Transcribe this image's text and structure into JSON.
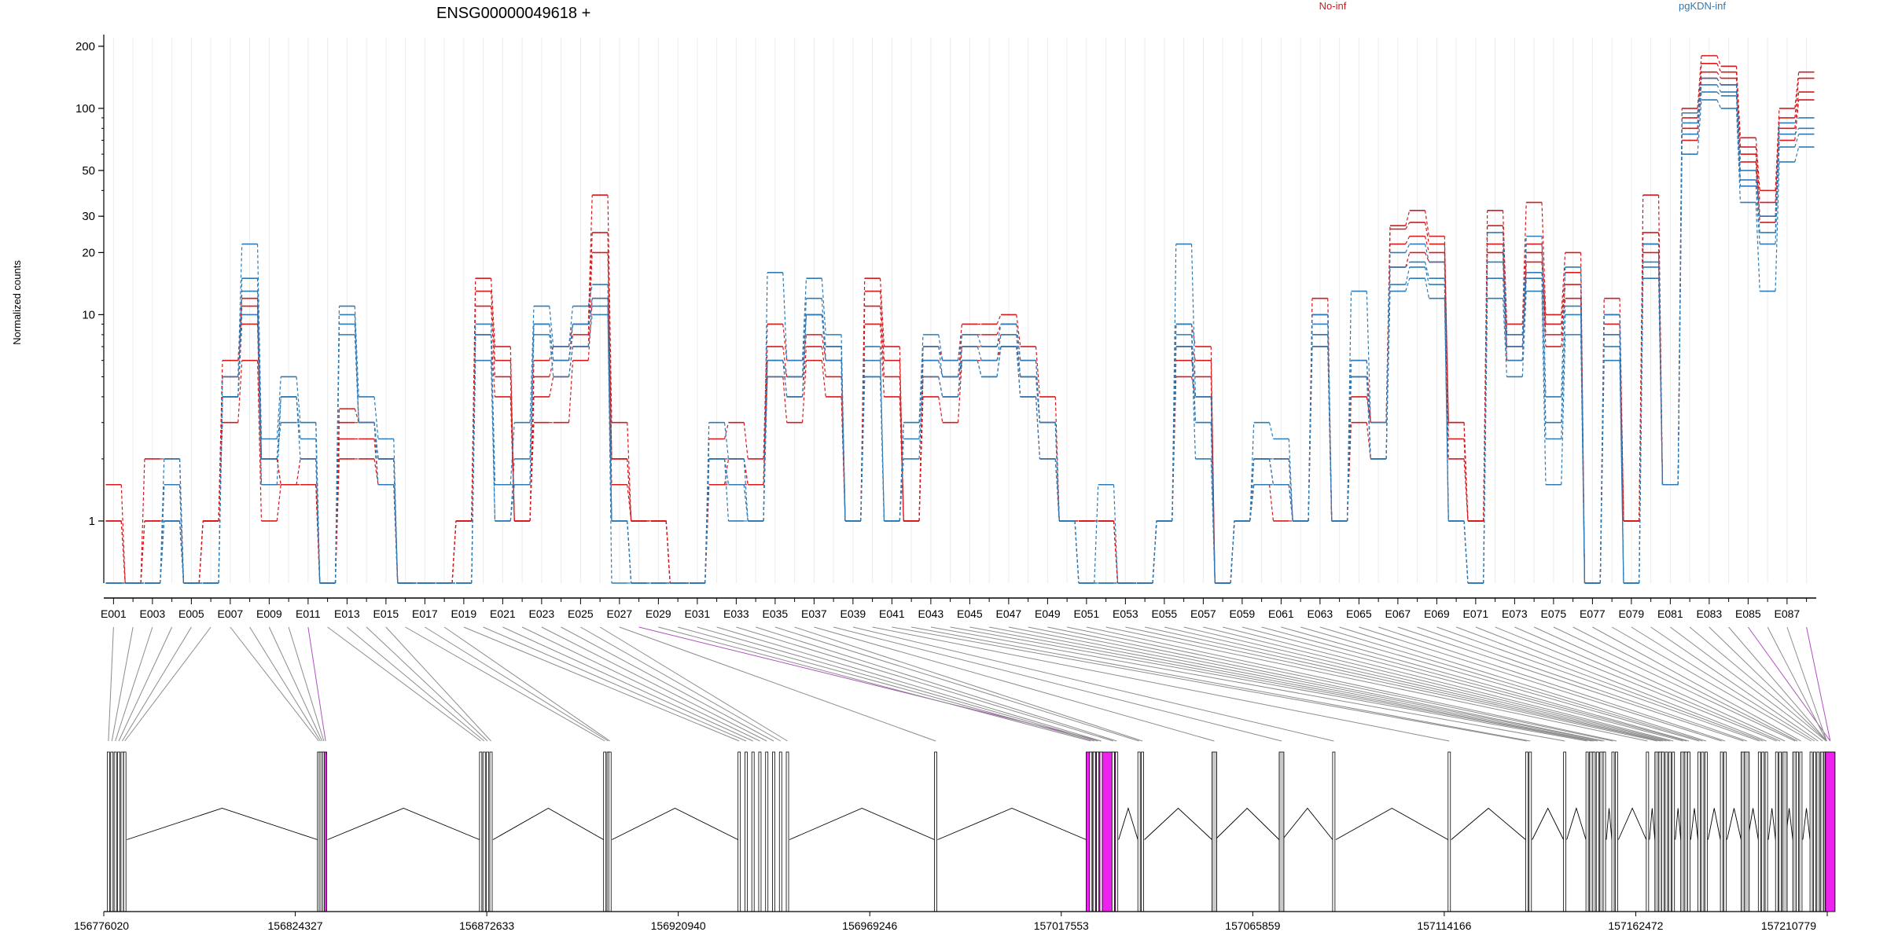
{
  "chart_data": {
    "type": "line",
    "title": "ENSG00000049618 +",
    "xlabel": "",
    "ylabel": "Normalized counts",
    "y_scale": "log",
    "ylim": [
      0.5,
      220
    ],
    "y_ticks": [
      1,
      10,
      20,
      30,
      50,
      100,
      200
    ],
    "grid": true,
    "legend_position": "top",
    "colors": {
      "No-inf": "#d7191c",
      "pgKDN-inf": "#2c7bb6",
      "highlight_exon": "#ee22ee",
      "exon_fill": "#c8c8c8"
    },
    "tick_labels": [
      "E001",
      "E003",
      "E005",
      "E007",
      "E009",
      "E011",
      "E013",
      "E015",
      "E017",
      "E019",
      "E021",
      "E023",
      "E025",
      "E027",
      "E029",
      "E031",
      "E033",
      "E035",
      "E037",
      "E039",
      "E041",
      "E043",
      "E045",
      "E047",
      "E049",
      "E051",
      "E053",
      "E055",
      "E057",
      "E059",
      "E061",
      "E063",
      "E065",
      "E067",
      "E069",
      "E071",
      "E073",
      "E075",
      "E077",
      "E079",
      "E081",
      "E083",
      "E085",
      "E087"
    ],
    "exons": [
      "E001",
      "E002",
      "E003",
      "E004",
      "E005",
      "E006",
      "E007",
      "E008",
      "E009",
      "E010",
      "E011",
      "E012",
      "E013",
      "E014",
      "E015",
      "E016",
      "E017",
      "E018",
      "E019",
      "E020",
      "E021",
      "E022",
      "E023",
      "E024",
      "E025",
      "E026",
      "E027",
      "E028",
      "E029",
      "E030",
      "E031",
      "E032",
      "E033",
      "E034",
      "E035",
      "E036",
      "E037",
      "E038",
      "E039",
      "E040",
      "E041",
      "E042",
      "E043",
      "E044",
      "E045",
      "E046",
      "E047",
      "E048",
      "E049",
      "E050",
      "E051",
      "E052",
      "E053",
      "E054",
      "E055",
      "E056",
      "E057",
      "E058",
      "E059",
      "E060",
      "E061",
      "E062",
      "E063",
      "E064",
      "E065",
      "E066",
      "E067",
      "E068",
      "E069",
      "E070",
      "E071",
      "E072",
      "E073",
      "E074",
      "E075",
      "E076",
      "E077",
      "E078",
      "E079",
      "E080",
      "E081",
      "E082",
      "E083",
      "E084",
      "E085",
      "E086",
      "E087",
      "E088"
    ],
    "series": [
      {
        "name": "No-inf",
        "group": "No-inf",
        "values": [
          1,
          0.5,
          1,
          1,
          0.5,
          1,
          5,
          11,
          2,
          1.5,
          1.5,
          0.5,
          3,
          3,
          2,
          0.5,
          0.5,
          0.5,
          1,
          13,
          6,
          1,
          5,
          6,
          8,
          25,
          2,
          1,
          1,
          0.5,
          0.5,
          2,
          2,
          1.5,
          7,
          5,
          8,
          6,
          1,
          13,
          6,
          1,
          6,
          5,
          8,
          8,
          9,
          6,
          3,
          1,
          1,
          1,
          0.5,
          0.5,
          1,
          7,
          6,
          0.5,
          1,
          2,
          1.5,
          1,
          10,
          1,
          5,
          3,
          26,
          28,
          22,
          3,
          1,
          27,
          8,
          22,
          9,
          16,
          0.5,
          10,
          1,
          25,
          1.5,
          90,
          165,
          150,
          65,
          35,
          90,
          140
        ]
      },
      {
        "name": "",
        "group": "No-inf",
        "values": [
          1.5,
          0.5,
          2,
          2,
          0.5,
          1,
          6,
          12,
          2,
          1.5,
          2,
          0.5,
          3.5,
          3,
          2,
          0.5,
          0.5,
          0.5,
          1,
          15,
          7,
          1,
          6,
          7,
          9,
          38,
          3,
          1,
          1,
          0.5,
          0.5,
          2.5,
          3,
          2,
          9,
          6,
          10,
          7,
          1,
          15,
          7,
          1,
          7,
          6,
          9,
          9,
          10,
          7,
          4,
          1,
          1,
          1,
          0.5,
          0.5,
          1,
          9,
          7,
          0.5,
          1,
          2,
          2,
          1,
          12,
          1,
          6,
          3,
          27,
          32,
          24,
          3,
          1,
          32,
          9,
          35,
          10,
          20,
          0.5,
          12,
          1,
          38,
          1.5,
          100,
          180,
          160,
          72,
          40,
          100,
          150
        ]
      },
      {
        "name": "",
        "group": "No-inf",
        "values": [
          1,
          0.5,
          1,
          1,
          0.5,
          1,
          4,
          9,
          1.5,
          1.5,
          1.5,
          0.5,
          2.5,
          2.5,
          1.5,
          0.5,
          0.5,
          0.5,
          1,
          11,
          5,
          1,
          4,
          5,
          7,
          20,
          2,
          1,
          1,
          0.5,
          0.5,
          1.5,
          2,
          1.5,
          6,
          4,
          7,
          5,
          1,
          11,
          5,
          1,
          5,
          4,
          7,
          7,
          8,
          5,
          3,
          1,
          1,
          1,
          0.5,
          0.5,
          1,
          6,
          5,
          0.5,
          1,
          1.5,
          1.5,
          1,
          8,
          1,
          4,
          3,
          22,
          24,
          20,
          2.5,
          1,
          22,
          7,
          20,
          8,
          14,
          0.5,
          9,
          1,
          22,
          1.5,
          80,
          150,
          140,
          60,
          30,
          80,
          120
        ]
      },
      {
        "name": "",
        "group": "No-inf",
        "values": [
          0.5,
          0.5,
          0.5,
          1.5,
          0.5,
          1,
          3,
          6,
          1,
          1.5,
          1.5,
          0.5,
          2,
          2,
          1.5,
          0.5,
          0.5,
          0.5,
          1,
          8,
          4,
          1,
          3,
          3,
          6,
          12,
          1.5,
          1,
          1,
          0.5,
          0.5,
          1.5,
          1.5,
          1.5,
          5,
          3,
          6,
          4,
          1,
          9,
          4,
          1,
          4,
          3,
          6,
          6,
          7,
          4,
          2,
          1,
          1,
          1,
          0.5,
          0.5,
          1,
          5,
          4,
          0.5,
          1,
          1.5,
          1,
          1,
          7,
          1,
          3,
          2,
          17,
          20,
          18,
          2,
          1,
          20,
          6,
          18,
          7,
          12,
          0.5,
          8,
          1,
          20,
          1.5,
          70,
          140,
          130,
          55,
          28,
          70,
          110
        ]
      },
      {
        "name": "pgKDN-inf",
        "group": "pgKDN-inf",
        "values": [
          0.5,
          0.5,
          0.5,
          2,
          0.5,
          0.5,
          4,
          15,
          2,
          4,
          2.5,
          0.5,
          10,
          3,
          2,
          0.5,
          0.5,
          0.5,
          0.5,
          8,
          1,
          2,
          9,
          6,
          9,
          12,
          1,
          0.5,
          0.5,
          0.5,
          0.5,
          2,
          1.5,
          1,
          6,
          5,
          10,
          7,
          1,
          6,
          1,
          2.5,
          7,
          5,
          7,
          6,
          8,
          5,
          3,
          1,
          0.5,
          0.5,
          0.5,
          0.5,
          1,
          9,
          3,
          0.5,
          1,
          2,
          2,
          1,
          9,
          1,
          6,
          2,
          17,
          18,
          15,
          1,
          0.5,
          18,
          7,
          16,
          3,
          11,
          0.5,
          8,
          0.5,
          18,
          1.5,
          85,
          130,
          120,
          45,
          25,
          75,
          80
        ]
      },
      {
        "name": "",
        "group": "pgKDN-inf",
        "values": [
          0.5,
          0.5,
          0.5,
          1.5,
          0.5,
          0.5,
          5,
          22,
          2.5,
          5,
          3,
          0.5,
          11,
          4,
          2.5,
          0.5,
          0.5,
          0.5,
          0.5,
          9,
          1.5,
          3,
          11,
          7,
          11,
          14,
          1,
          0.5,
          0.5,
          0.5,
          0.5,
          3,
          2,
          1,
          16,
          6,
          15,
          8,
          1,
          7,
          1,
          3,
          8,
          6,
          8,
          7,
          9,
          6,
          3,
          1,
          0.5,
          1.5,
          0.5,
          0.5,
          1,
          22,
          4,
          0.5,
          1,
          3,
          2.5,
          1,
          10,
          1,
          13,
          3,
          20,
          22,
          18,
          1,
          0.5,
          25,
          8,
          24,
          4,
          17,
          0.5,
          10,
          0.5,
          22,
          1.5,
          95,
          140,
          130,
          50,
          30,
          85,
          90
        ]
      },
      {
        "name": "",
        "group": "pgKDN-inf",
        "values": [
          0.5,
          0.5,
          0.5,
          1,
          0.5,
          0.5,
          4,
          13,
          2,
          3,
          3,
          0.5,
          9,
          3,
          2,
          0.5,
          0.5,
          0.5,
          0.5,
          8,
          1.5,
          1.5,
          9,
          6,
          9,
          11,
          0.5,
          0.5,
          0.5,
          0.5,
          0.5,
          2,
          1.5,
          1,
          5,
          5,
          12,
          6,
          1,
          5,
          1,
          3,
          6,
          5,
          6,
          5,
          7,
          5,
          3,
          1,
          0.5,
          0.5,
          0.5,
          0.5,
          1,
          8,
          3,
          0.5,
          1,
          2,
          1.5,
          1,
          8,
          1,
          5,
          2,
          14,
          17,
          14,
          1,
          0.5,
          15,
          6,
          15,
          2.5,
          10,
          0.5,
          7,
          0.5,
          17,
          1.5,
          75,
          120,
          115,
          42,
          22,
          65,
          75
        ]
      },
      {
        "name": "",
        "group": "pgKDN-inf",
        "values": [
          0.5,
          0.5,
          0.5,
          1,
          0.5,
          0.5,
          4,
          10,
          1.5,
          4,
          2,
          0.5,
          8,
          3,
          1.5,
          0.5,
          0.5,
          0.5,
          0.5,
          6,
          1,
          1.5,
          8,
          5,
          7,
          10,
          1,
          0.5,
          0.5,
          0.5,
          0.5,
          2,
          1,
          1,
          6,
          4,
          10,
          6,
          1,
          5,
          1,
          2,
          5,
          4,
          6,
          5,
          7,
          4,
          2,
          1,
          0.5,
          0.5,
          0.5,
          0.5,
          1,
          7,
          2,
          0.5,
          1,
          1.5,
          1.5,
          1,
          7,
          1,
          5,
          2,
          13,
          15,
          12,
          1,
          0.5,
          12,
          5,
          13,
          1.5,
          8,
          0.5,
          6,
          0.5,
          15,
          1.5,
          60,
          110,
          100,
          35,
          13,
          55,
          65
        ]
      }
    ],
    "legend": [
      "No-inf",
      "pgKDN-inf"
    ],
    "genome_ticks": [
      "156776020",
      "156824327",
      "156872633",
      "156920940",
      "156969246",
      "157017553",
      "157065859",
      "157114166",
      "157162472",
      "157210779"
    ]
  }
}
